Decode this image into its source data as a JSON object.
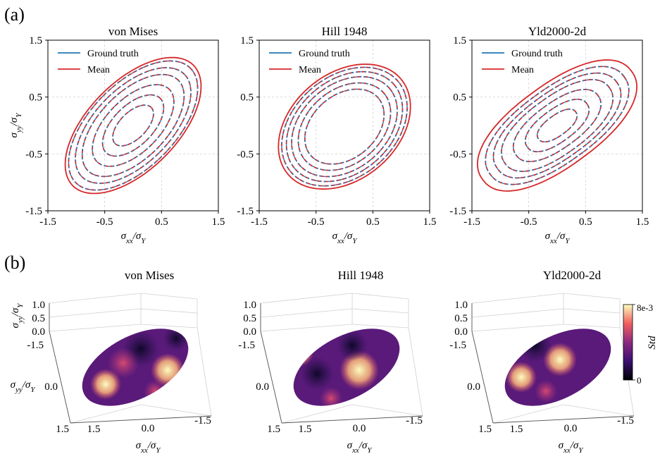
{
  "panel_a_label": "(a)",
  "panel_b_label": "(b)",
  "colors": {
    "ground_truth": "#1f77b4",
    "mean": "#d62728",
    "grid": "#c8c8c8"
  },
  "chart_data": [
    {
      "type": "line",
      "title": "von Mises",
      "xlabel": "σxx/σY",
      "ylabel": "σyy/σY",
      "xlim": [
        -1.5,
        1.5
      ],
      "ylim": [
        -1.5,
        1.5
      ],
      "xticks": [
        "-1.5",
        "-0.5",
        "0.5",
        "1.5"
      ],
      "yticks": [
        "-1.5",
        "-0.5",
        "0.5",
        "1.5"
      ],
      "grid": true,
      "legend_position": "top-left",
      "legend": [
        "Ground truth",
        "Mean"
      ],
      "contour_levels": [
        0.3,
        0.45,
        0.6,
        0.75,
        0.85,
        0.95
      ],
      "series": [
        {
          "name": "Ground truth",
          "shape": "von-mises",
          "levels": [
            0.3,
            0.45,
            0.6,
            0.75,
            0.85,
            0.95
          ]
        },
        {
          "name": "Mean",
          "shape": "von-mises",
          "levels": [
            0.3,
            0.45,
            0.6,
            0.75,
            0.85,
            0.95,
            1.0
          ]
        }
      ]
    },
    {
      "type": "line",
      "title": "Hill 1948",
      "xlabel": "σxx/σY",
      "ylabel": "",
      "xlim": [
        -1.5,
        1.5
      ],
      "ylim": [
        -1.5,
        1.5
      ],
      "xticks": [
        "-1.5",
        "-0.5",
        "0.5",
        "1.5"
      ],
      "yticks": [
        "-1.5",
        "-0.5",
        "0.5",
        "1.5"
      ],
      "grid": true,
      "legend_position": "top-left",
      "legend": [
        "Ground truth",
        "Mean"
      ],
      "series": [
        {
          "name": "Ground truth",
          "shape": "hill-1948",
          "levels": [
            0.6,
            0.7,
            0.8,
            0.88,
            0.95
          ]
        },
        {
          "name": "Mean",
          "shape": "hill-1948",
          "levels": [
            0.6,
            0.7,
            0.8,
            0.88,
            0.95,
            1.0
          ]
        }
      ]
    },
    {
      "type": "line",
      "title": "Yld2000-2d",
      "xlabel": "σxx/σY",
      "ylabel": "",
      "xlim": [
        -1.5,
        1.5
      ],
      "ylim": [
        -1.5,
        1.5
      ],
      "xticks": [
        "-1.5",
        "-0.5",
        "0.5",
        "1.5"
      ],
      "yticks": [
        "-1.5",
        "-0.5",
        "0.5",
        "1.5"
      ],
      "grid": true,
      "legend_position": "top-left",
      "legend": [
        "Ground truth",
        "Mean"
      ],
      "series": [
        {
          "name": "Ground truth",
          "shape": "yld2000-2d",
          "levels": [
            0.25,
            0.4,
            0.55,
            0.7,
            0.8,
            0.9
          ]
        },
        {
          "name": "Mean",
          "shape": "yld2000-2d",
          "levels": [
            0.25,
            0.4,
            0.55,
            0.7,
            0.8,
            0.9,
            1.0
          ]
        }
      ]
    },
    {
      "type": "heatmap",
      "title": "von Mises",
      "projection": "3d",
      "xlabel": "σxx/σY",
      "ylabel": "σyy/σY",
      "zlabel": "σyy/σY",
      "xticks": [
        "1.5",
        "0.0",
        "-1.5"
      ],
      "yticks": [
        "-1.5",
        "0.0",
        "1.5"
      ],
      "zticks": [
        "0.0",
        "0.5",
        "1.0"
      ],
      "colormap": "magma",
      "colorbar_label": "Std",
      "colorbar_range": [
        "0",
        "8e-3"
      ]
    },
    {
      "type": "heatmap",
      "title": "Hill 1948",
      "projection": "3d",
      "xlabel": "σxx/σY",
      "xticks": [
        "1.5",
        "0.0",
        "-1.5"
      ],
      "yticks": [
        "-1.5",
        "0.0",
        "1.5"
      ],
      "zticks": [
        "0.0",
        "0.5",
        "1.0"
      ],
      "colormap": "magma"
    },
    {
      "type": "heatmap",
      "title": "Yld2000-2d",
      "projection": "3d",
      "xlabel": "σxx/σY",
      "xticks": [
        "1.5",
        "0.0",
        "-1.5"
      ],
      "yticks": [
        "-1.5",
        "0.0",
        "1.5"
      ],
      "zticks": [
        "0.0",
        "0.5",
        "1.0"
      ],
      "colormap": "magma"
    }
  ]
}
